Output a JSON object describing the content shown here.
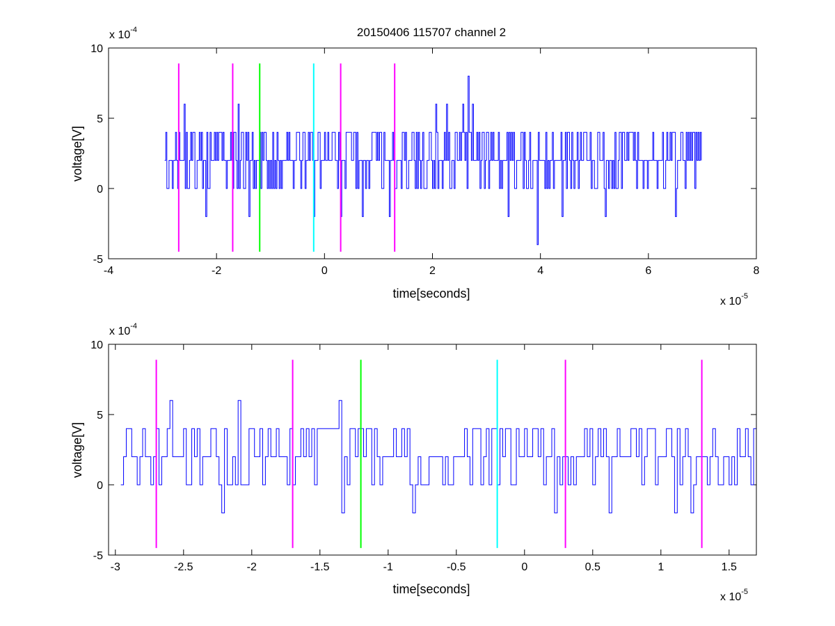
{
  "chart_data": [
    {
      "type": "line",
      "title": "20150406 115707 channel 2",
      "xlabel": "time[seconds]",
      "ylabel": "voltage[V]",
      "xlim": [
        -4,
        8
      ],
      "ylim": [
        -5,
        10
      ],
      "x_ticks": [
        -4,
        -2,
        0,
        2,
        4,
        6,
        8
      ],
      "y_ticks": [
        -5,
        0,
        5,
        10
      ],
      "x_multiplier": {
        "base": "x 10",
        "exp": "-5"
      },
      "y_multiplier": {
        "base": "x 10",
        "exp": "-4"
      },
      "grid": false,
      "series": [
        {
          "color": "#0000ff",
          "x_range": [
            -2.96,
            6.98
          ],
          "sample_step": 0.02,
          "level_values": [
            0,
            2,
            4
          ],
          "base_value": 2,
          "peaks": [
            {
              "x": 2.66,
              "y": 8
            },
            {
              "x": 2.06,
              "y": 6
            },
            {
              "x": 2.26,
              "y": 6
            },
            {
              "x": 2.56,
              "y": 6
            },
            {
              "x": 2.74,
              "y": 6
            },
            {
              "x": -2.6,
              "y": 6
            },
            {
              "x": -2.2,
              "y": 6
            },
            {
              "x": -1.6,
              "y": 6
            },
            {
              "x": -1.4,
              "y": 6
            },
            {
              "x": 1.2,
              "y": 6
            }
          ],
          "troughs": [
            {
              "x": 3.94,
              "y": -4
            },
            {
              "x": -2.2,
              "y": -2
            },
            {
              "x": -1.4,
              "y": -2
            },
            {
              "x": -0.2,
              "y": -2
            },
            {
              "x": 0.3,
              "y": -2
            },
            {
              "x": 0.7,
              "y": -2
            },
            {
              "x": 1.2,
              "y": -2
            },
            {
              "x": 3.4,
              "y": -2
            },
            {
              "x": 4.4,
              "y": -2
            },
            {
              "x": 5.2,
              "y": -2
            },
            {
              "x": 6.5,
              "y": -2
            }
          ]
        }
      ],
      "markers": [
        {
          "x": -2.7,
          "color": "#ff00ff",
          "y0": -4.5,
          "y1": 8.9
        },
        {
          "x": -1.7,
          "color": "#ff00ff",
          "y0": -4.5,
          "y1": 8.9
        },
        {
          "x": -1.2,
          "color": "#00ff00",
          "y0": -4.5,
          "y1": 8.9
        },
        {
          "x": -0.2,
          "color": "#00ffff",
          "y0": -4.5,
          "y1": 8.9
        },
        {
          "x": 0.3,
          "color": "#ff00ff",
          "y0": -4.5,
          "y1": 8.9
        },
        {
          "x": 1.3,
          "color": "#ff00ff",
          "y0": -4.5,
          "y1": 8.9
        }
      ]
    },
    {
      "type": "line",
      "title": "",
      "xlabel": "time[seconds]",
      "ylabel": "voltage[V]",
      "xlim": [
        -3.05,
        1.7
      ],
      "ylim": [
        -5,
        10
      ],
      "x_ticks": [
        -3,
        -2.5,
        -2,
        -1.5,
        -1,
        -0.5,
        0,
        0.5,
        1,
        1.5
      ],
      "y_ticks": [
        -5,
        0,
        5,
        10
      ],
      "x_multiplier": {
        "base": "x 10",
        "exp": "-5"
      },
      "y_multiplier": {
        "base": "x 10",
        "exp": "-4"
      },
      "grid": false,
      "series": [
        {
          "color": "#0000ff",
          "x_range": [
            -2.96,
            1.7
          ],
          "sample_step": 0.02,
          "level_values": [
            0,
            2,
            4
          ],
          "base_value": 2,
          "peaks": [
            {
              "x": -2.6,
              "y": 6
            },
            {
              "x": -2.1,
              "y": 6
            },
            {
              "x": -1.36,
              "y": 6
            }
          ],
          "troughs": [
            {
              "x": -2.22,
              "y": -2
            },
            {
              "x": -1.34,
              "y": -2
            },
            {
              "x": -0.82,
              "y": -2
            },
            {
              "x": 0.22,
              "y": -2
            },
            {
              "x": 0.62,
              "y": -2
            },
            {
              "x": 1.1,
              "y": -2
            },
            {
              "x": 1.22,
              "y": -2
            }
          ]
        }
      ],
      "markers": [
        {
          "x": -2.7,
          "color": "#ff00ff",
          "y0": -4.5,
          "y1": 8.9
        },
        {
          "x": -1.7,
          "color": "#ff00ff",
          "y0": -4.5,
          "y1": 8.9
        },
        {
          "x": -1.2,
          "color": "#00ff00",
          "y0": -4.5,
          "y1": 8.9
        },
        {
          "x": -0.2,
          "color": "#00ffff",
          "y0": -4.5,
          "y1": 8.9
        },
        {
          "x": 0.3,
          "color": "#ff00ff",
          "y0": -4.5,
          "y1": 8.9
        },
        {
          "x": 1.3,
          "color": "#ff00ff",
          "y0": -4.5,
          "y1": 8.9
        }
      ]
    }
  ]
}
